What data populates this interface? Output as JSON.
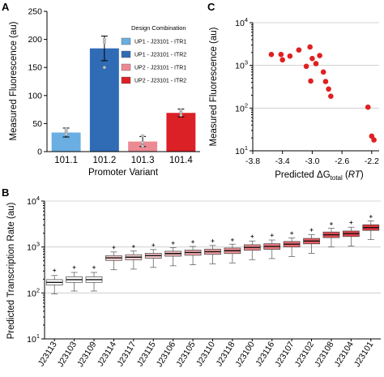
{
  "panels": {
    "A": {
      "letter": "A",
      "chart_data": {
        "type": "bar",
        "title": "",
        "xlabel": "Promoter Variant",
        "ylabel": "Measured Fluorescence (au)",
        "categories": [
          "101.1",
          "101.2",
          "101.3",
          "101.4"
        ],
        "values": [
          34,
          184,
          18,
          69
        ],
        "errors": [
          8,
          22,
          9,
          7
        ],
        "points": [
          [
            31,
            36,
            40
          ],
          [
            150,
            195,
            200
          ],
          [
            10,
            16,
            28
          ],
          [
            65,
            70,
            74
          ]
        ],
        "ylim": [
          0,
          250
        ],
        "yticks": [
          "0",
          "50",
          "100",
          "150",
          "200",
          "250"
        ],
        "legend_title": "Design Combination",
        "legend": [
          {
            "name": "UP1 - J23101 - ITR1",
            "color": "#6aaee2"
          },
          {
            "name": "UP1 - J23101 - ITR2",
            "color": "#2f6cb5"
          },
          {
            "name": "UP2 - J23101 - ITR1",
            "color": "#ec8a93"
          },
          {
            "name": "UP2 - J23101 - ITR2",
            "color": "#db2026"
          }
        ],
        "legend_placement": "top-right"
      }
    },
    "C": {
      "letter": "C",
      "chart_data": {
        "type": "scatter",
        "title": "",
        "xlabel_main": "Predicted ΔG",
        "xlabel_sub": "total",
        "xlabel_unit_open": " (",
        "xlabel_unit": "RT",
        "xlabel_unit_close": ")",
        "ylabel": "Measured Fluorescence (au)",
        "yscale": "log",
        "xlim": [
          -3.8,
          -2.1
        ],
        "ylim": [
          10,
          10000
        ],
        "xticks": [
          "-3.8",
          "-3.4",
          "-3.0",
          "-2.6",
          "-2.2"
        ],
        "ytick_base": "10",
        "ytick_exponents": [
          "1",
          "2",
          "3",
          "4"
        ],
        "color": "#e02020",
        "points": [
          {
            "x": -3.55,
            "y": 1800
          },
          {
            "x": -3.42,
            "y": 1800
          },
          {
            "x": -3.4,
            "y": 1350
          },
          {
            "x": -3.3,
            "y": 1650
          },
          {
            "x": -3.18,
            "y": 2300
          },
          {
            "x": -3.08,
            "y": 950
          },
          {
            "x": -3.03,
            "y": 2700
          },
          {
            "x": -3.0,
            "y": 1450
          },
          {
            "x": -3.02,
            "y": 430
          },
          {
            "x": -2.95,
            "y": 1100
          },
          {
            "x": -2.9,
            "y": 1700
          },
          {
            "x": -2.85,
            "y": 700
          },
          {
            "x": -2.82,
            "y": 420
          },
          {
            "x": -2.78,
            "y": 280
          },
          {
            "x": -2.75,
            "y": 190
          },
          {
            "x": -2.25,
            "y": 105
          },
          {
            "x": -2.2,
            "y": 22
          },
          {
            "x": -2.17,
            "y": 18
          }
        ]
      }
    },
    "B": {
      "letter": "B",
      "chart_data": {
        "type": "box",
        "title": "",
        "xlabel": "",
        "ylabel": "Predicted Transcription Rate (au)",
        "yscale": "log",
        "ylim": [
          10,
          10000
        ],
        "ytick_base": "10",
        "ytick_exponents": [
          "1",
          "2",
          "3",
          "4"
        ],
        "categories": [
          "J23113",
          "J23103",
          "J23109",
          "J23114",
          "J23117",
          "J23115",
          "J23106",
          "J23105",
          "J23110",
          "J23118",
          "J23100",
          "J23116",
          "J23107",
          "J23102",
          "J23108",
          "J23104",
          "J23101"
        ],
        "boxes": [
          {
            "median": 170,
            "q1": 150,
            "q3": 195,
            "low": 95,
            "high": 240,
            "outlier": 310,
            "color": "#ffffff"
          },
          {
            "median": 195,
            "q1": 170,
            "q3": 225,
            "low": 110,
            "high": 280,
            "outlier": 360,
            "color": "#ffffff"
          },
          {
            "median": 195,
            "q1": 170,
            "q3": 225,
            "low": 110,
            "high": 280,
            "outlier": 360,
            "color": "#ffffff"
          },
          {
            "median": 580,
            "q1": 510,
            "q3": 650,
            "low": 320,
            "high": 780,
            "outlier": 980,
            "color": "#f9d0d2"
          },
          {
            "median": 600,
            "q1": 525,
            "q3": 680,
            "low": 330,
            "high": 820,
            "outlier": 1030,
            "color": "#f9d0d2"
          },
          {
            "median": 650,
            "q1": 570,
            "q3": 730,
            "low": 360,
            "high": 880,
            "outlier": 1100,
            "color": "#f6c4c7"
          },
          {
            "median": 720,
            "q1": 630,
            "q3": 810,
            "low": 390,
            "high": 970,
            "outlier": 1220,
            "color": "#f4b7bb"
          },
          {
            "median": 760,
            "q1": 660,
            "q3": 860,
            "low": 410,
            "high": 1030,
            "outlier": 1300,
            "color": "#f2aaae"
          },
          {
            "median": 790,
            "q1": 690,
            "q3": 900,
            "low": 430,
            "high": 1080,
            "outlier": 1360,
            "color": "#f09da2"
          },
          {
            "median": 830,
            "q1": 720,
            "q3": 950,
            "low": 450,
            "high": 1150,
            "outlier": 1430,
            "color": "#ee9096"
          },
          {
            "median": 980,
            "q1": 850,
            "q3": 1120,
            "low": 530,
            "high": 1350,
            "outlier": 1700,
            "color": "#ec8389"
          },
          {
            "median": 1030,
            "q1": 890,
            "q3": 1180,
            "low": 560,
            "high": 1420,
            "outlier": 1800,
            "color": "#ea767d"
          },
          {
            "median": 1150,
            "q1": 1000,
            "q3": 1320,
            "low": 620,
            "high": 1580,
            "outlier": 2000,
            "color": "#e86970"
          },
          {
            "median": 1350,
            "q1": 1170,
            "q3": 1540,
            "low": 730,
            "high": 1850,
            "outlier": 2350,
            "color": "#e65c63"
          },
          {
            "median": 1850,
            "q1": 1600,
            "q3": 2120,
            "low": 1000,
            "high": 2550,
            "outlier": 3200,
            "color": "#e44f57"
          },
          {
            "median": 1950,
            "q1": 1690,
            "q3": 2230,
            "low": 1050,
            "high": 2700,
            "outlier": 3400,
            "color": "#e2424b"
          },
          {
            "median": 2650,
            "q1": 2300,
            "q3": 3050,
            "low": 1450,
            "high": 3700,
            "outlier": 4600,
            "color": "#e0353e"
          }
        ]
      }
    }
  }
}
